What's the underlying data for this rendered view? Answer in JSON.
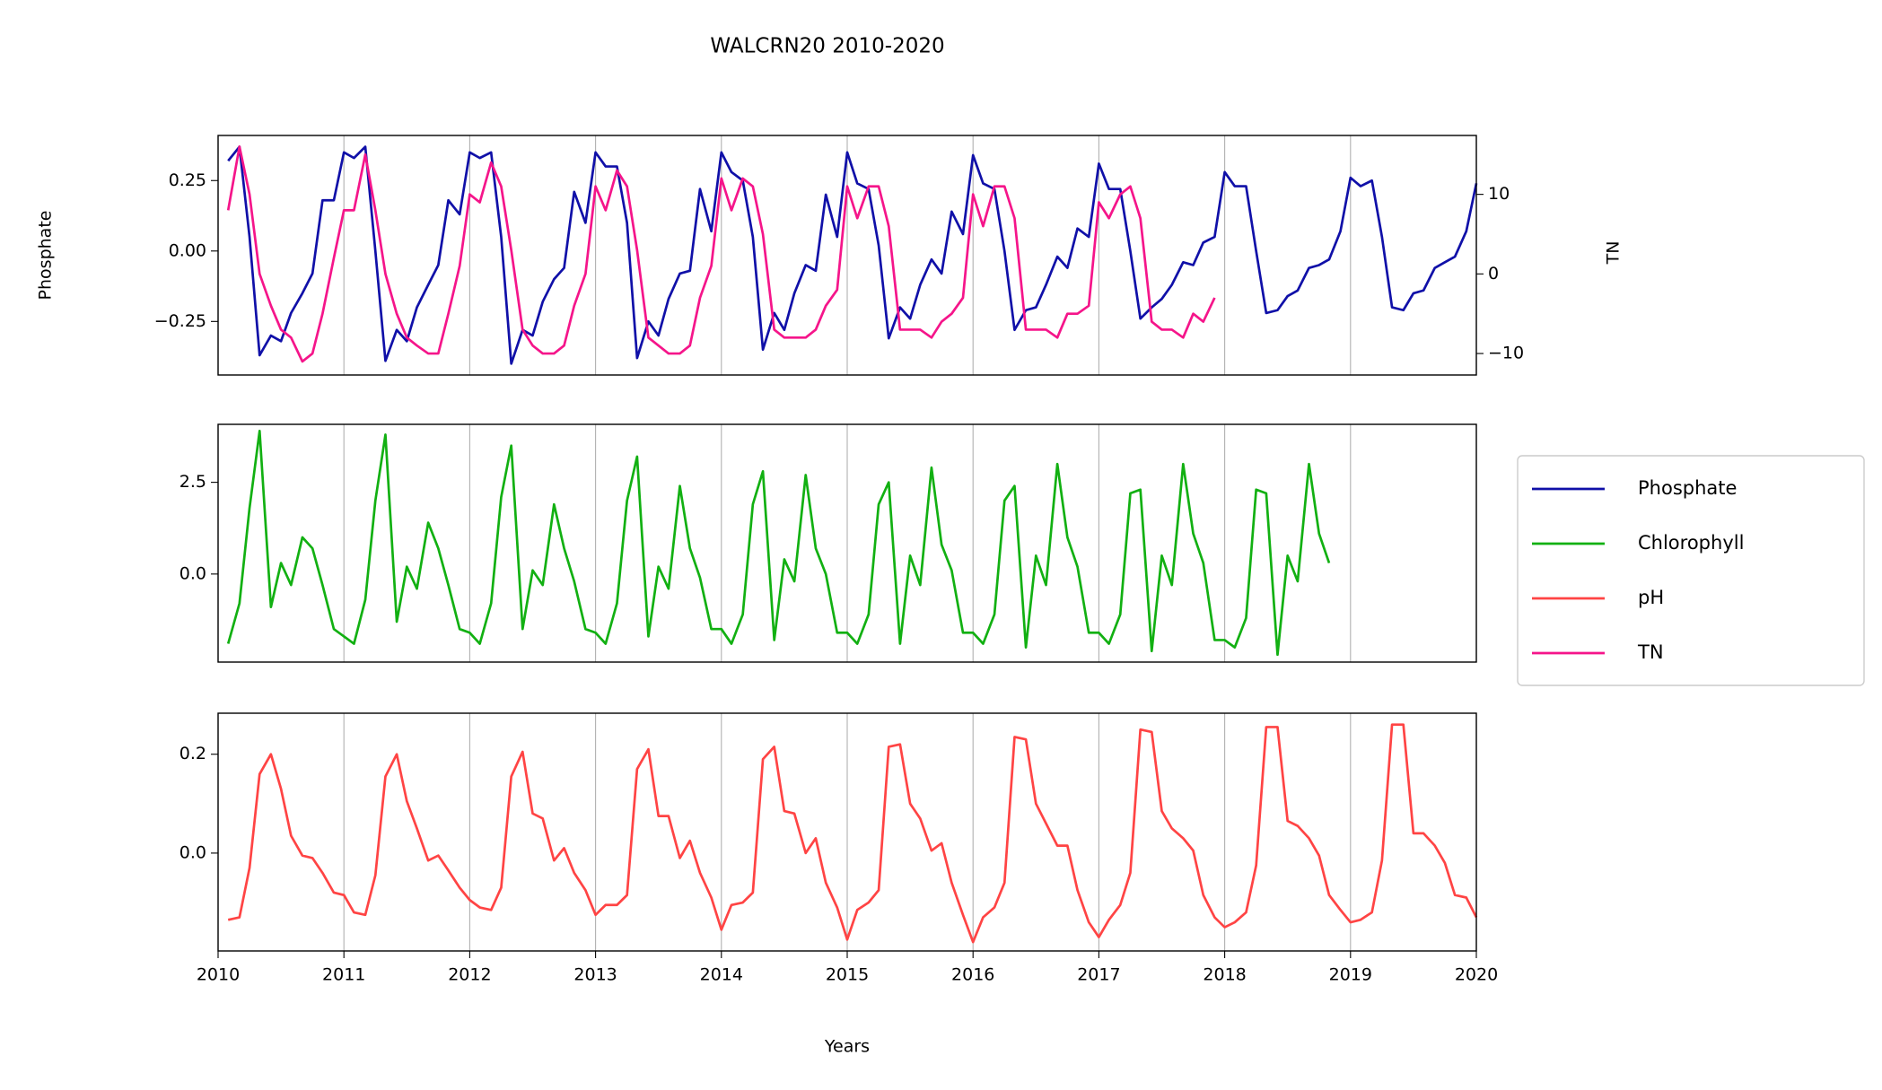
{
  "chart_data": {
    "type": "line",
    "title": "WALCRN20 2010-2020",
    "xlabel": "Years",
    "x": [
      2010.08,
      2010.17,
      2010.25,
      2010.33,
      2010.42,
      2010.5,
      2010.58,
      2010.67,
      2010.75,
      2010.83,
      2010.92,
      2011,
      2011.08,
      2011.17,
      2011.25,
      2011.33,
      2011.42,
      2011.5,
      2011.58,
      2011.67,
      2011.75,
      2011.83,
      2011.92,
      2012,
      2012.08,
      2012.17,
      2012.25,
      2012.33,
      2012.42,
      2012.5,
      2012.58,
      2012.67,
      2012.75,
      2012.83,
      2012.92,
      2013,
      2013.08,
      2013.17,
      2013.25,
      2013.33,
      2013.42,
      2013.5,
      2013.58,
      2013.67,
      2013.75,
      2013.83,
      2013.92,
      2014,
      2014.08,
      2014.17,
      2014.25,
      2014.33,
      2014.42,
      2014.5,
      2014.58,
      2014.67,
      2014.75,
      2014.83,
      2014.92,
      2015,
      2015.08,
      2015.17,
      2015.25,
      2015.33,
      2015.42,
      2015.5,
      2015.58,
      2015.67,
      2015.75,
      2015.83,
      2015.92,
      2016,
      2016.08,
      2016.17,
      2016.25,
      2016.33,
      2016.42,
      2016.5,
      2016.58,
      2016.67,
      2016.75,
      2016.83,
      2016.92,
      2017,
      2017.08,
      2017.17,
      2017.25,
      2017.33,
      2017.42,
      2017.5,
      2017.58,
      2017.67,
      2017.75,
      2017.83,
      2017.92,
      2018,
      2018.08,
      2018.17,
      2018.25,
      2018.33,
      2018.42,
      2018.5,
      2018.58,
      2018.67,
      2018.75,
      2018.83,
      2018.92,
      2019,
      2019.08,
      2019.17,
      2019.25,
      2019.33,
      2019.42,
      2019.5,
      2019.58,
      2019.67,
      2019.75,
      2019.83,
      2019.92,
      2020
    ],
    "xlim": [
      2010,
      2020
    ],
    "xticks": [
      2010,
      2011,
      2012,
      2013,
      2014,
      2015,
      2016,
      2017,
      2018,
      2019,
      2020
    ],
    "grid": "x",
    "legend": "right",
    "panels": [
      {
        "ylabel": "Phosphate",
        "y2label": "TN",
        "ylim": [
          -0.44,
          0.41
        ],
        "yticks": [
          {
            "value": -0.25,
            "label": "−0.25"
          },
          {
            "value": 0,
            "label": "0.00"
          },
          {
            "value": 0.25,
            "label": "0.25"
          }
        ],
        "y2lim": [
          -12.7,
          17.4
        ],
        "y2ticks": [
          {
            "value": -10,
            "label": "−10"
          },
          0,
          10
        ],
        "series": [
          {
            "name": "Phosphate",
            "color": "#1010a8",
            "values": [
              0.32,
              0.37,
              0.05,
              -0.37,
              -0.3,
              -0.32,
              -0.22,
              -0.15,
              -0.08,
              0.18,
              0.18,
              0.35,
              0.33,
              0.37,
              0.0,
              -0.39,
              -0.28,
              -0.32,
              -0.2,
              -0.12,
              -0.05,
              0.18,
              0.13,
              0.35,
              0.33,
              0.35,
              0.05,
              -0.4,
              -0.28,
              -0.3,
              -0.18,
              -0.1,
              -0.06,
              0.21,
              0.1,
              0.35,
              0.3,
              0.3,
              0.1,
              -0.38,
              -0.25,
              -0.3,
              -0.17,
              -0.08,
              -0.07,
              0.22,
              0.07,
              0.35,
              0.28,
              0.25,
              0.05,
              -0.35,
              -0.22,
              -0.28,
              -0.15,
              -0.05,
              -0.07,
              0.2,
              0.05,
              0.35,
              0.24,
              0.22,
              0.02,
              -0.31,
              -0.2,
              -0.24,
              -0.12,
              -0.03,
              -0.08,
              0.14,
              0.06,
              0.34,
              0.24,
              0.22,
              0.0,
              -0.28,
              -0.21,
              -0.2,
              -0.12,
              -0.02,
              -0.06,
              0.08,
              0.05,
              0.31,
              0.22,
              0.22,
              0.0,
              -0.24,
              -0.2,
              -0.17,
              -0.12,
              -0.04,
              -0.05,
              0.03,
              0.05,
              0.28,
              0.23,
              0.23,
              0.0,
              -0.22,
              -0.21,
              -0.16,
              -0.14,
              -0.06,
              -0.05,
              -0.03,
              0.07,
              0.26,
              0.23,
              0.25,
              0.05,
              -0.2,
              -0.21,
              -0.15,
              -0.14,
              -0.06,
              -0.04,
              -0.02,
              0.07,
              0.24
            ]
          },
          {
            "name": "TN",
            "color": "#f5158a",
            "axis": "y2",
            "values": [
              8,
              16,
              10,
              0,
              -4,
              -7,
              -8,
              -11,
              -10,
              -5,
              2,
              8,
              8,
              15,
              8,
              0,
              -5,
              -8,
              -9,
              -10,
              -10,
              -5,
              1,
              10,
              9,
              14,
              11,
              3,
              -7,
              -9,
              -10,
              -10,
              -9,
              -4,
              0,
              11,
              8,
              13,
              11,
              3,
              -8,
              -9,
              -10,
              -10,
              -9,
              -3,
              1,
              12,
              8,
              12,
              11,
              5,
              -7,
              -8,
              -8,
              -8,
              -7,
              -4,
              -2,
              11,
              7,
              11,
              11,
              6,
              -7,
              -7,
              -7,
              -8,
              -6,
              -5,
              -3,
              10,
              6,
              11,
              11,
              7,
              -7,
              -7,
              -7,
              -8,
              -5,
              -5,
              -4,
              9,
              7,
              10,
              11,
              7,
              -6,
              -7,
              -7,
              -8,
              -5,
              -6,
              -3,
              null,
              null,
              null,
              null,
              null,
              null,
              null,
              null,
              null,
              null,
              null,
              null,
              null,
              null,
              null,
              null,
              null,
              null,
              null,
              null,
              null,
              null,
              null,
              null,
              null
            ]
          }
        ]
      },
      {
        "ylim": [
          -2.4,
          4.08
        ],
        "yticks": [
          {
            "value": 0,
            "label": "0.0"
          },
          2.5
        ],
        "series": [
          {
            "name": "Chlorophyll",
            "color": "#12b012",
            "values": [
              -1.9,
              -0.8,
              1.8,
              3.9,
              -0.9,
              0.3,
              -0.3,
              1.0,
              0.7,
              -0.3,
              -1.5,
              -1.7,
              -1.9,
              -0.7,
              2.0,
              3.8,
              -1.3,
              0.2,
              -0.4,
              1.4,
              0.7,
              -0.3,
              -1.5,
              -1.6,
              -1.9,
              -0.8,
              2.1,
              3.5,
              -1.5,
              0.1,
              -0.3,
              1.9,
              0.7,
              -0.2,
              -1.5,
              -1.6,
              -1.9,
              -0.8,
              2.0,
              3.2,
              -1.7,
              0.2,
              -0.4,
              2.4,
              0.7,
              -0.1,
              -1.5,
              -1.5,
              -1.9,
              -1.1,
              1.9,
              2.8,
              -1.8,
              0.4,
              -0.2,
              2.7,
              0.7,
              0.0,
              -1.6,
              -1.6,
              -1.9,
              -1.1,
              1.9,
              2.5,
              -1.9,
              0.5,
              -0.3,
              2.9,
              0.8,
              0.1,
              -1.6,
              -1.6,
              -1.9,
              -1.1,
              2.0,
              2.4,
              -2.0,
              0.5,
              -0.3,
              3.0,
              1.0,
              0.2,
              -1.6,
              -1.6,
              -1.9,
              -1.1,
              2.2,
              2.3,
              -2.1,
              0.5,
              -0.3,
              3.0,
              1.1,
              0.3,
              -1.8,
              -1.8,
              -2.0,
              -1.2,
              2.3,
              2.2,
              -2.2,
              0.5,
              -0.2,
              3.0,
              1.1,
              0.3,
              null,
              null,
              null,
              null,
              null,
              null,
              null,
              null,
              null,
              null,
              null,
              null,
              null,
              null
            ]
          }
        ]
      },
      {
        "ylim": [
          -0.198,
          0.283
        ],
        "yticks": [
          {
            "value": 0,
            "label": "0.0"
          },
          0.2
        ],
        "series": [
          {
            "name": "pH",
            "color": "#ff4444",
            "values": [
              -0.135,
              -0.13,
              -0.03,
              0.16,
              0.2,
              0.13,
              0.035,
              -0.005,
              -0.01,
              -0.04,
              -0.08,
              -0.085,
              -0.12,
              -0.125,
              -0.045,
              0.155,
              0.2,
              0.105,
              0.05,
              -0.015,
              -0.005,
              -0.035,
              -0.07,
              -0.095,
              -0.11,
              -0.115,
              -0.07,
              0.155,
              0.205,
              0.08,
              0.07,
              -0.015,
              0.01,
              -0.04,
              -0.075,
              -0.125,
              -0.105,
              -0.105,
              -0.085,
              0.17,
              0.21,
              0.075,
              0.075,
              -0.01,
              0.025,
              -0.04,
              -0.09,
              -0.155,
              -0.105,
              -0.1,
              -0.08,
              0.19,
              0.215,
              0.085,
              0.08,
              0.0,
              0.03,
              -0.06,
              -0.11,
              -0.175,
              -0.115,
              -0.1,
              -0.075,
              0.215,
              0.22,
              0.1,
              0.07,
              0.005,
              0.02,
              -0.06,
              -0.125,
              -0.18,
              -0.13,
              -0.11,
              -0.06,
              0.235,
              0.23,
              0.1,
              0.06,
              0.015,
              0.015,
              -0.075,
              -0.14,
              -0.17,
              -0.135,
              -0.105,
              -0.04,
              0.25,
              0.245,
              0.085,
              0.05,
              0.03,
              0.005,
              -0.085,
              -0.13,
              -0.15,
              -0.14,
              -0.12,
              -0.025,
              0.255,
              0.255,
              0.065,
              0.055,
              0.03,
              -0.005,
              -0.085,
              -0.115,
              -0.14,
              -0.135,
              -0.12,
              -0.015,
              0.26,
              0.26,
              0.04,
              0.04,
              0.015,
              -0.02,
              -0.085,
              -0.09,
              -0.13
            ]
          }
        ]
      }
    ]
  }
}
